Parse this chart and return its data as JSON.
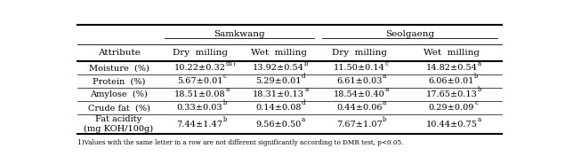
{
  "col_bounds": [
    0.015,
    0.205,
    0.385,
    0.565,
    0.755,
    0.985
  ],
  "header1_labels": [
    "Samkwang",
    "Seolgaeng"
  ],
  "header2_labels": [
    "Attribute",
    "Dry  milling",
    "Wet  milling",
    "Dry  milling",
    "Wet  milling"
  ],
  "rows": [
    [
      "Moisture  (%)",
      "10.22±0.32",
      "d1)",
      "13.92±0.54",
      "b",
      "11.50±0.14",
      "c",
      "14.82±0.54",
      "a"
    ],
    [
      "Protein  (%)",
      "5.67±0.01",
      "c",
      "5.29±0.01",
      "d",
      "6.61±0.03",
      "a",
      "6.06±0.01",
      "b"
    ],
    [
      "Amylose  (%)",
      "18.51±0.08",
      "a",
      "18.31±0.13",
      "a",
      "18.54±0.40",
      "a",
      "17.65±0.13",
      "b"
    ],
    [
      "Crude fat  (%)",
      "0.33±0.03",
      "b",
      "0.14±0.08",
      "d",
      "0.44±0.06",
      "a",
      "0.29±0.09",
      "c"
    ],
    [
      "Fat acidity\n(mg KOH/100g)",
      "7.44±1.47",
      "b",
      "9.56±0.50",
      "a",
      "7.67±1.07",
      "b",
      "10.44±0.75",
      "a"
    ]
  ],
  "footnote": "1)Values with the same letter in a row are not different significantly according to DMR test, p<0.05.",
  "bg_color": "#ffffff",
  "text_color": "#000000",
  "main_fontsize": 7.0,
  "sup_fontsize": 5.0,
  "header_fontsize": 7.5
}
